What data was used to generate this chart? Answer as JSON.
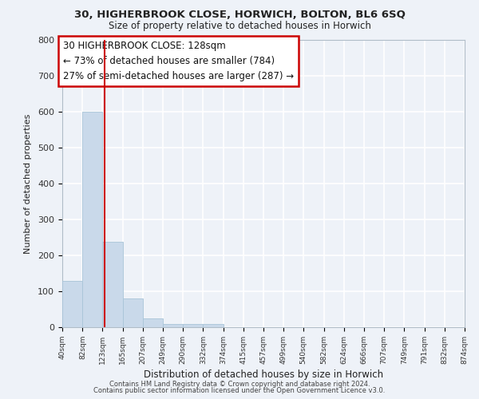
{
  "title": "30, HIGHERBROOK CLOSE, HORWICH, BOLTON, BL6 6SQ",
  "subtitle": "Size of property relative to detached houses in Horwich",
  "xlabel": "Distribution of detached houses by size in Horwich",
  "ylabel": "Number of detached properties",
  "bin_edges": [
    40,
    82,
    123,
    165,
    207,
    249,
    290,
    332,
    374,
    415,
    457,
    499,
    540,
    582,
    624,
    666,
    707,
    749,
    791,
    832,
    874
  ],
  "bin_labels": [
    "40sqm",
    "82sqm",
    "123sqm",
    "165sqm",
    "207sqm",
    "249sqm",
    "290sqm",
    "332sqm",
    "374sqm",
    "415sqm",
    "457sqm",
    "499sqm",
    "540sqm",
    "582sqm",
    "624sqm",
    "666sqm",
    "707sqm",
    "749sqm",
    "791sqm",
    "832sqm",
    "874sqm"
  ],
  "bar_heights": [
    130,
    600,
    237,
    80,
    25,
    10,
    8,
    10,
    0,
    0,
    0,
    0,
    0,
    0,
    0,
    0,
    0,
    0,
    0,
    0
  ],
  "bar_color": "#c9d9ea",
  "bar_edge_color": "#a8c4d8",
  "vline_x": 128,
  "vline_color": "#cc0000",
  "annotation_line1": "30 HIGHERBROOK CLOSE: 128sqm",
  "annotation_line2": "← 73% of detached houses are smaller (784)",
  "annotation_line3": "27% of semi-detached houses are larger (287) →",
  "annotation_box_color": "white",
  "annotation_box_edge": "#cc0000",
  "ylim": [
    0,
    800
  ],
  "yticks": [
    0,
    100,
    200,
    300,
    400,
    500,
    600,
    700,
    800
  ],
  "background_color": "#eef2f8",
  "grid_color": "white",
  "footer_line1": "Contains HM Land Registry data © Crown copyright and database right 2024.",
  "footer_line2": "Contains public sector information licensed under the Open Government Licence v3.0."
}
